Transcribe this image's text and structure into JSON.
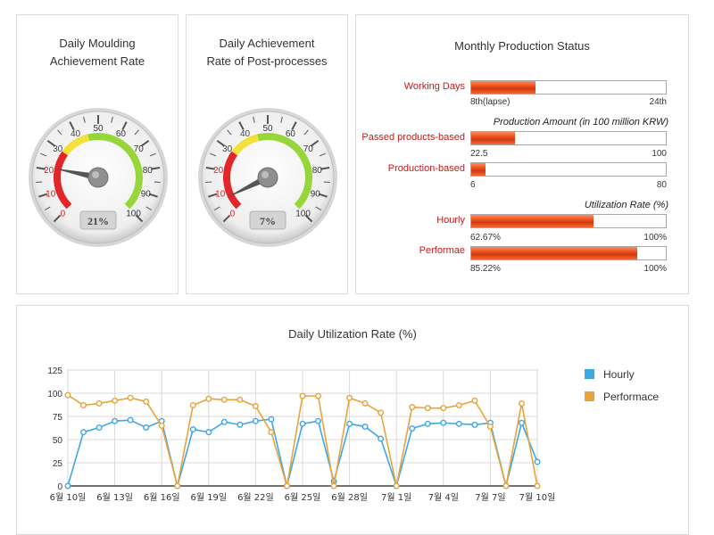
{
  "gauges": [
    {
      "title_line1": "Daily Moulding",
      "title_line2": "Achievement Rate",
      "value_label": "21%",
      "value": 21,
      "ticks": [
        "0",
        "10",
        "20",
        "30",
        "40",
        "50",
        "60",
        "70",
        "80",
        "90",
        "100"
      ]
    },
    {
      "title_line1": "Daily Achievement",
      "title_line2": "Rate of Post-processes",
      "value_label": "7%",
      "value": 7,
      "ticks": [
        "0",
        "10",
        "20",
        "30",
        "40",
        "50",
        "60",
        "70",
        "80",
        "90",
        "100"
      ]
    }
  ],
  "monthly": {
    "title": "Monthly Production Status",
    "working_days": {
      "label": "Working Days",
      "left": "8th(lapse)",
      "right": "24th",
      "fraction": 0.33
    },
    "amount_header": "Production Amount (in 100 million KRW)",
    "passed": {
      "label": "Passed products-based",
      "left": "22.5",
      "right": "100",
      "fraction": 0.225
    },
    "production": {
      "label": "Production-based",
      "left": "6",
      "right": "80",
      "fraction": 0.075
    },
    "util_header": "Utilization Rate (%)",
    "hourly": {
      "label": "Hourly",
      "left": "62.67%",
      "right": "100%",
      "fraction": 0.6267
    },
    "performae": {
      "label": "Performae",
      "left": "85.22%",
      "right": "100%",
      "fraction": 0.8522
    }
  },
  "chart_data": {
    "type": "line",
    "title": "Daily Utilization Rate (%)",
    "ylim": [
      0,
      125
    ],
    "yticks": [
      "0",
      "25",
      "50",
      "75",
      "100",
      "125"
    ],
    "x_tick_labels": [
      "6월 10일",
      "6월 13일",
      "6월 16일",
      "6월 19일",
      "6월 22일",
      "6월 25일",
      "6월 28일",
      "7월 1일",
      "7월 4일",
      "7월 7일",
      "7월 10일"
    ],
    "x_tick_days": [
      0,
      3,
      6,
      9,
      12,
      15,
      18,
      21,
      24,
      27,
      30
    ],
    "x_day_max": 30,
    "series": [
      {
        "name": "Hourly",
        "color": "#3ea8e6",
        "x": [
          0,
          1,
          2,
          3,
          4,
          5,
          6,
          7,
          8,
          9,
          10,
          11,
          12,
          13,
          14,
          15,
          16,
          17,
          18,
          19,
          20,
          21,
          22,
          23,
          24,
          25,
          26,
          27,
          28,
          29,
          30
        ],
        "values": [
          0,
          58,
          63,
          70,
          71,
          63,
          70,
          0,
          61,
          58,
          69,
          66,
          70,
          72,
          0,
          67,
          70,
          5,
          67,
          64,
          51,
          0,
          62,
          67,
          68,
          67,
          66,
          68,
          0,
          68,
          26
        ]
      },
      {
        "name": "Performace",
        "color": "#e8a33a",
        "x": [
          0,
          1,
          2,
          3,
          4,
          5,
          6,
          7,
          8,
          9,
          10,
          11,
          12,
          13,
          14,
          15,
          16,
          17,
          18,
          19,
          20,
          21,
          22,
          23,
          24,
          25,
          26,
          27,
          28,
          29,
          30
        ],
        "values": [
          98,
          87,
          89,
          92,
          95,
          91,
          65,
          0,
          87,
          94,
          93,
          93,
          86,
          58,
          0,
          97,
          97,
          0,
          95,
          89,
          79,
          0,
          85,
          84,
          84,
          87,
          92,
          64,
          0,
          89,
          0
        ]
      }
    ],
    "legend_placement": "right"
  }
}
